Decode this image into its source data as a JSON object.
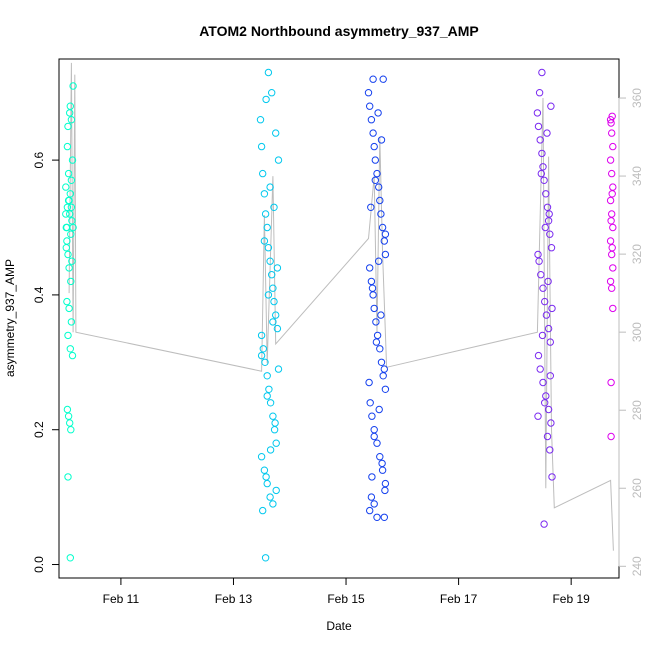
{
  "chart_data": {
    "type": "scatter",
    "title": "ATOM2 Northbound asymmetry_937_AMP",
    "xlabel": "Date",
    "ylabel": "asymmetry_937_AMP",
    "x_unit": "day of February",
    "xlim": [
      9.9,
      19.85
    ],
    "ylim": [
      -0.02,
      0.75
    ],
    "x_ticks": [
      11,
      13,
      15,
      17,
      19
    ],
    "x_tick_labels": [
      "Feb 11",
      "Feb 13",
      "Feb 15",
      "Feb 17",
      "Feb 19"
    ],
    "y_ticks": [
      0.0,
      0.2,
      0.4,
      0.6
    ],
    "y_tick_labels": [
      "0.0",
      "0.2",
      "0.4",
      "0.6"
    ],
    "right_axis": {
      "ylim": [
        237,
        370
      ],
      "ticks": [
        240,
        260,
        280,
        300,
        320,
        340,
        360
      ],
      "tick_labels": [
        "240",
        "260",
        "280",
        "300",
        "320",
        "340",
        "360"
      ],
      "color": "#bdbdbd"
    },
    "secondary_line": {
      "color": "#bdbdbd",
      "points": [
        [
          10.08,
          310
        ],
        [
          10.12,
          369
        ],
        [
          10.15,
          300
        ],
        [
          10.18,
          366
        ],
        [
          10.2,
          300
        ],
        [
          13.5,
          290
        ],
        [
          13.55,
          330
        ],
        [
          13.6,
          292
        ],
        [
          13.7,
          340
        ],
        [
          13.75,
          297
        ],
        [
          15.4,
          324
        ],
        [
          15.5,
          340
        ],
        [
          15.55,
          300
        ],
        [
          15.6,
          350
        ],
        [
          15.65,
          320
        ],
        [
          15.72,
          291
        ],
        [
          18.4,
          300
        ],
        [
          18.5,
          360
        ],
        [
          18.55,
          260
        ],
        [
          18.6,
          345
        ],
        [
          18.65,
          275
        ],
        [
          18.7,
          255
        ],
        [
          19.7,
          262
        ],
        [
          19.75,
          244
        ]
      ]
    },
    "grid": false,
    "legend": "none",
    "series": [
      {
        "color": "#00ffcc",
        "points": [
          [
            10.02,
            0.56
          ],
          [
            10.03,
            0.5
          ],
          [
            10.04,
            0.48
          ],
          [
            10.05,
            0.53
          ],
          [
            10.06,
            0.46
          ],
          [
            10.07,
            0.54
          ],
          [
            10.08,
            0.44
          ],
          [
            10.09,
            0.52
          ],
          [
            10.1,
            0.55
          ],
          [
            10.11,
            0.49
          ],
          [
            10.12,
            0.57
          ],
          [
            10.13,
            0.51
          ],
          [
            10.14,
            0.6
          ],
          [
            10.05,
            0.62
          ],
          [
            10.06,
            0.65
          ],
          [
            10.09,
            0.67
          ],
          [
            10.1,
            0.68
          ],
          [
            10.12,
            0.66
          ],
          [
            10.15,
            0.71
          ],
          [
            10.07,
            0.58
          ],
          [
            10.11,
            0.42
          ],
          [
            10.04,
            0.39
          ],
          [
            10.08,
            0.38
          ],
          [
            10.12,
            0.36
          ],
          [
            10.06,
            0.34
          ],
          [
            10.1,
            0.32
          ],
          [
            10.14,
            0.31
          ],
          [
            10.05,
            0.23
          ],
          [
            10.07,
            0.22
          ],
          [
            10.09,
            0.21
          ],
          [
            10.11,
            0.2
          ],
          [
            10.06,
            0.13
          ],
          [
            10.1,
            0.01
          ],
          [
            10.03,
            0.47
          ],
          [
            10.13,
            0.45
          ],
          [
            10.15,
            0.5
          ],
          [
            10.02,
            0.52
          ],
          [
            10.08,
            0.54
          ],
          [
            10.12,
            0.53
          ],
          [
            10.04,
            0.5
          ]
        ]
      },
      {
        "color": "#00c8ee",
        "points": [
          [
            13.48,
            0.66
          ],
          [
            13.5,
            0.62
          ],
          [
            13.52,
            0.58
          ],
          [
            13.55,
            0.55
          ],
          [
            13.57,
            0.52
          ],
          [
            13.6,
            0.5
          ],
          [
            13.62,
            0.47
          ],
          [
            13.65,
            0.45
          ],
          [
            13.68,
            0.43
          ],
          [
            13.7,
            0.41
          ],
          [
            13.72,
            0.39
          ],
          [
            13.75,
            0.37
          ],
          [
            13.78,
            0.35
          ],
          [
            13.5,
            0.34
          ],
          [
            13.53,
            0.32
          ],
          [
            13.56,
            0.3
          ],
          [
            13.6,
            0.28
          ],
          [
            13.63,
            0.26
          ],
          [
            13.66,
            0.24
          ],
          [
            13.7,
            0.22
          ],
          [
            13.73,
            0.2
          ],
          [
            13.76,
            0.18
          ],
          [
            13.5,
            0.16
          ],
          [
            13.55,
            0.14
          ],
          [
            13.6,
            0.12
          ],
          [
            13.65,
            0.1
          ],
          [
            13.7,
            0.09
          ],
          [
            13.52,
            0.08
          ],
          [
            13.62,
            0.73
          ],
          [
            13.68,
            0.7
          ],
          [
            13.58,
            0.69
          ],
          [
            13.75,
            0.64
          ],
          [
            13.8,
            0.6
          ],
          [
            13.57,
            0.01
          ],
          [
            13.65,
            0.56
          ],
          [
            13.72,
            0.53
          ],
          [
            13.55,
            0.48
          ],
          [
            13.78,
            0.44
          ],
          [
            13.62,
            0.4
          ],
          [
            13.7,
            0.36
          ],
          [
            13.5,
            0.31
          ],
          [
            13.8,
            0.29
          ],
          [
            13.6,
            0.25
          ],
          [
            13.74,
            0.21
          ],
          [
            13.66,
            0.17
          ],
          [
            13.58,
            0.13
          ],
          [
            13.76,
            0.11
          ]
        ]
      },
      {
        "color": "#1440ee",
        "points": [
          [
            15.4,
            0.7
          ],
          [
            15.42,
            0.68
          ],
          [
            15.45,
            0.66
          ],
          [
            15.48,
            0.64
          ],
          [
            15.5,
            0.62
          ],
          [
            15.52,
            0.6
          ],
          [
            15.55,
            0.58
          ],
          [
            15.58,
            0.56
          ],
          [
            15.6,
            0.54
          ],
          [
            15.62,
            0.52
          ],
          [
            15.65,
            0.5
          ],
          [
            15.68,
            0.48
          ],
          [
            15.7,
            0.46
          ],
          [
            15.42,
            0.44
          ],
          [
            15.45,
            0.42
          ],
          [
            15.48,
            0.4
          ],
          [
            15.5,
            0.38
          ],
          [
            15.53,
            0.36
          ],
          [
            15.56,
            0.34
          ],
          [
            15.6,
            0.32
          ],
          [
            15.63,
            0.3
          ],
          [
            15.66,
            0.28
          ],
          [
            15.7,
            0.26
          ],
          [
            15.43,
            0.24
          ],
          [
            15.46,
            0.22
          ],
          [
            15.5,
            0.2
          ],
          [
            15.55,
            0.18
          ],
          [
            15.6,
            0.16
          ],
          [
            15.65,
            0.14
          ],
          [
            15.7,
            0.12
          ],
          [
            15.45,
            0.1
          ],
          [
            15.5,
            0.09
          ],
          [
            15.42,
            0.08
          ],
          [
            15.55,
            0.07
          ],
          [
            15.68,
            0.07
          ],
          [
            15.48,
            0.72
          ],
          [
            15.66,
            0.72
          ],
          [
            15.57,
            0.67
          ],
          [
            15.63,
            0.63
          ],
          [
            15.52,
            0.57
          ],
          [
            15.44,
            0.53
          ],
          [
            15.7,
            0.49
          ],
          [
            15.58,
            0.45
          ],
          [
            15.47,
            0.41
          ],
          [
            15.62,
            0.37
          ],
          [
            15.54,
            0.33
          ],
          [
            15.68,
            0.29
          ],
          [
            15.41,
            0.27
          ],
          [
            15.59,
            0.23
          ],
          [
            15.5,
            0.19
          ],
          [
            15.64,
            0.15
          ],
          [
            15.46,
            0.13
          ],
          [
            15.69,
            0.11
          ]
        ]
      },
      {
        "color": "#7a2af0",
        "points": [
          [
            18.4,
            0.67
          ],
          [
            18.42,
            0.65
          ],
          [
            18.45,
            0.63
          ],
          [
            18.48,
            0.61
          ],
          [
            18.5,
            0.59
          ],
          [
            18.52,
            0.57
          ],
          [
            18.55,
            0.55
          ],
          [
            18.58,
            0.53
          ],
          [
            18.6,
            0.51
          ],
          [
            18.62,
            0.49
          ],
          [
            18.65,
            0.47
          ],
          [
            18.43,
            0.45
          ],
          [
            18.46,
            0.43
          ],
          [
            18.5,
            0.41
          ],
          [
            18.53,
            0.39
          ],
          [
            18.56,
            0.37
          ],
          [
            18.6,
            0.35
          ],
          [
            18.63,
            0.33
          ],
          [
            18.42,
            0.31
          ],
          [
            18.45,
            0.29
          ],
          [
            18.5,
            0.27
          ],
          [
            18.55,
            0.25
          ],
          [
            18.6,
            0.23
          ],
          [
            18.64,
            0.21
          ],
          [
            18.58,
            0.19
          ],
          [
            18.62,
            0.17
          ],
          [
            18.66,
            0.13
          ],
          [
            18.48,
            0.73
          ],
          [
            18.44,
            0.7
          ],
          [
            18.64,
            0.68
          ],
          [
            18.52,
            0.06
          ],
          [
            18.57,
            0.64
          ],
          [
            18.47,
            0.58
          ],
          [
            18.61,
            0.52
          ],
          [
            18.54,
            0.5
          ],
          [
            18.41,
            0.46
          ],
          [
            18.59,
            0.42
          ],
          [
            18.66,
            0.38
          ],
          [
            18.49,
            0.34
          ],
          [
            18.63,
            0.28
          ],
          [
            18.53,
            0.24
          ],
          [
            18.41,
            0.22
          ]
        ]
      },
      {
        "color": "#dd00ee",
        "points": [
          [
            19.7,
            0.66
          ],
          [
            19.72,
            0.64
          ],
          [
            19.74,
            0.62
          ],
          [
            19.7,
            0.6
          ],
          [
            19.72,
            0.58
          ],
          [
            19.74,
            0.56
          ],
          [
            19.7,
            0.54
          ],
          [
            19.72,
            0.52
          ],
          [
            19.74,
            0.5
          ],
          [
            19.7,
            0.48
          ],
          [
            19.72,
            0.46
          ],
          [
            19.74,
            0.44
          ],
          [
            19.7,
            0.42
          ],
          [
            19.72,
            0.41
          ],
          [
            19.74,
            0.38
          ],
          [
            19.71,
            0.27
          ],
          [
            19.71,
            0.19
          ],
          [
            19.73,
            0.665
          ],
          [
            19.71,
            0.655
          ],
          [
            19.73,
            0.55
          ],
          [
            19.71,
            0.51
          ],
          [
            19.73,
            0.47
          ]
        ]
      }
    ]
  }
}
